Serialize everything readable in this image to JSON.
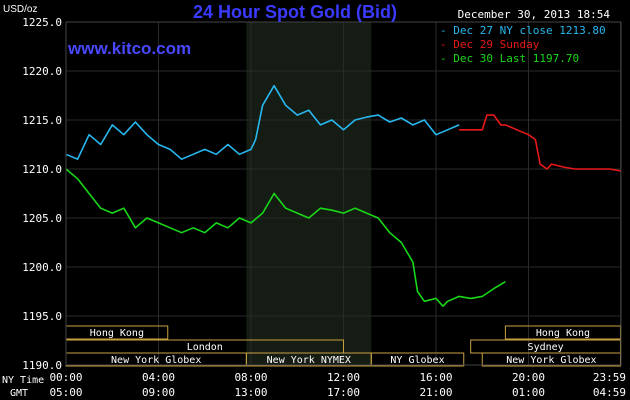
{
  "header": {
    "title": "24 Hour Spot Gold (Bid)",
    "unit": "USD/oz",
    "timestamp": "December 30, 2013 18:54",
    "site": "www.kitco.com"
  },
  "colors": {
    "background": "#000000",
    "plot_bg": "#000000",
    "night_band": "#141c14",
    "grid": "#2a2a2a",
    "axis_text": "#ffffff",
    "title": "#3b3bff",
    "site": "#4848ff",
    "session_box": "#c8a040",
    "session_text": "#ffffff",
    "blue": "#28b8f0",
    "red": "#e81818",
    "green": "#18d818"
  },
  "chart_data": {
    "type": "line",
    "title": "24 Hour Spot Gold (Bid)",
    "ylabel": "USD/oz",
    "ylim": [
      1190,
      1225
    ],
    "yticks": [
      "1225.0",
      "1220.0",
      "1215.0",
      "1210.0",
      "1205.0",
      "1200.0",
      "1195.0",
      "1190.0"
    ],
    "yticks_values": [
      1225,
      1220,
      1215,
      1210,
      1205,
      1200,
      1195,
      1190
    ],
    "x_hours_range": [
      0,
      24
    ],
    "xrow_labels": [
      "NY Time",
      "GMT"
    ],
    "xticks_ny": [
      "00:00",
      "04:00",
      "08:00",
      "12:00",
      "16:00",
      "20:00",
      "23:59"
    ],
    "xticks_gmt": [
      "05:00",
      "09:00",
      "13:00",
      "17:00",
      "21:00",
      "01:00",
      "04:59"
    ],
    "xticks_hours": [
      0,
      4,
      8,
      12,
      16,
      20,
      23.98
    ],
    "legend": [
      {
        "label": "Dec 27 NY close 1213.80",
        "color": "#28b8f0"
      },
      {
        "label": "Dec 29 Sunday",
        "color": "#e81818"
      },
      {
        "label": "Dec 30 Last 1197.70",
        "color": "#18d818"
      }
    ],
    "series": [
      {
        "name": "Dec 27 NY close 1213.80",
        "color": "#28b8f0",
        "x": [
          0,
          0.5,
          1,
          1.5,
          2,
          2.5,
          3,
          3.5,
          4,
          4.5,
          5,
          5.5,
          6,
          6.5,
          7,
          7.5,
          8,
          8.2,
          8.5,
          9,
          9.5,
          10,
          10.5,
          11,
          11.5,
          12,
          12.5,
          13,
          13.5,
          14,
          14.5,
          15,
          15.5,
          16,
          16.5,
          17
        ],
        "y": [
          1211.5,
          1211,
          1213.5,
          1212.5,
          1214.5,
          1213.5,
          1214.8,
          1213.5,
          1212.5,
          1212,
          1211,
          1211.5,
          1212,
          1211.5,
          1212.5,
          1211.5,
          1212,
          1213,
          1216.5,
          1218.5,
          1216.5,
          1215.5,
          1216,
          1214.5,
          1215,
          1214,
          1215,
          1215.3,
          1215.5,
          1214.8,
          1215.2,
          1214.5,
          1215,
          1213.5,
          1214,
          1214.5
        ]
      },
      {
        "name": "Dec 29 Sunday",
        "color": "#e81818",
        "x": [
          17,
          18,
          18.2,
          18.5,
          18.8,
          19,
          19.5,
          20,
          20.3,
          20.5,
          20.8,
          21,
          21.5,
          22,
          22.5,
          23,
          23.5,
          24
        ],
        "y": [
          1214,
          1214,
          1215.5,
          1215.5,
          1214.5,
          1214.5,
          1214,
          1213.5,
          1213,
          1210.5,
          1210,
          1210.5,
          1210.2,
          1210,
          1210,
          1210,
          1210,
          1209.8
        ]
      },
      {
        "name": "Dec 30 Last 1197.70",
        "color": "#18d818",
        "x": [
          0,
          0.5,
          1,
          1.5,
          2,
          2.5,
          3,
          3.5,
          4,
          4.5,
          5,
          5.5,
          6,
          6.5,
          7,
          7.5,
          8,
          8.5,
          9,
          9.5,
          10,
          10.5,
          11,
          11.5,
          12,
          12.5,
          13,
          13.5,
          14,
          14.5,
          15,
          15.2,
          15.5,
          16,
          16.3,
          16.5,
          17,
          17.5,
          18,
          18.5,
          19
        ],
        "y": [
          1210,
          1209,
          1207.5,
          1206,
          1205.5,
          1206,
          1204,
          1205,
          1204.5,
          1204,
          1203.5,
          1204,
          1203.5,
          1204.5,
          1204,
          1205,
          1204.5,
          1205.5,
          1207.5,
          1206,
          1205.5,
          1205,
          1206,
          1205.8,
          1205.5,
          1206,
          1205.5,
          1205,
          1203.5,
          1202.5,
          1200.5,
          1197.5,
          1196.5,
          1196.8,
          1196,
          1196.5,
          1197,
          1196.8,
          1197,
          1197.8,
          1198.5
        ]
      }
    ],
    "night_band_hours": [
      7.8,
      13.2
    ],
    "session_rows": [
      {
        "row": 0,
        "sessions": [
          {
            "label": "Hong Kong",
            "start": 0,
            "end": 4.4
          },
          {
            "label": "Hong Kong",
            "start": 19,
            "end": 23.98
          }
        ]
      },
      {
        "row": 1,
        "sessions": [
          {
            "label": "London",
            "start": 0,
            "end": 12
          },
          {
            "label": "Sydney",
            "start": 17.5,
            "end": 23.98
          }
        ]
      },
      {
        "row": 2,
        "sessions": [
          {
            "label": "New York Globex",
            "start": 0,
            "end": 7.8
          },
          {
            "label": "New York NYMEX",
            "start": 7.8,
            "end": 13.2
          },
          {
            "label": "NY Globex",
            "start": 13.2,
            "end": 17.2
          },
          {
            "label": "New York Globex",
            "start": 18,
            "end": 23.98
          }
        ]
      }
    ]
  }
}
